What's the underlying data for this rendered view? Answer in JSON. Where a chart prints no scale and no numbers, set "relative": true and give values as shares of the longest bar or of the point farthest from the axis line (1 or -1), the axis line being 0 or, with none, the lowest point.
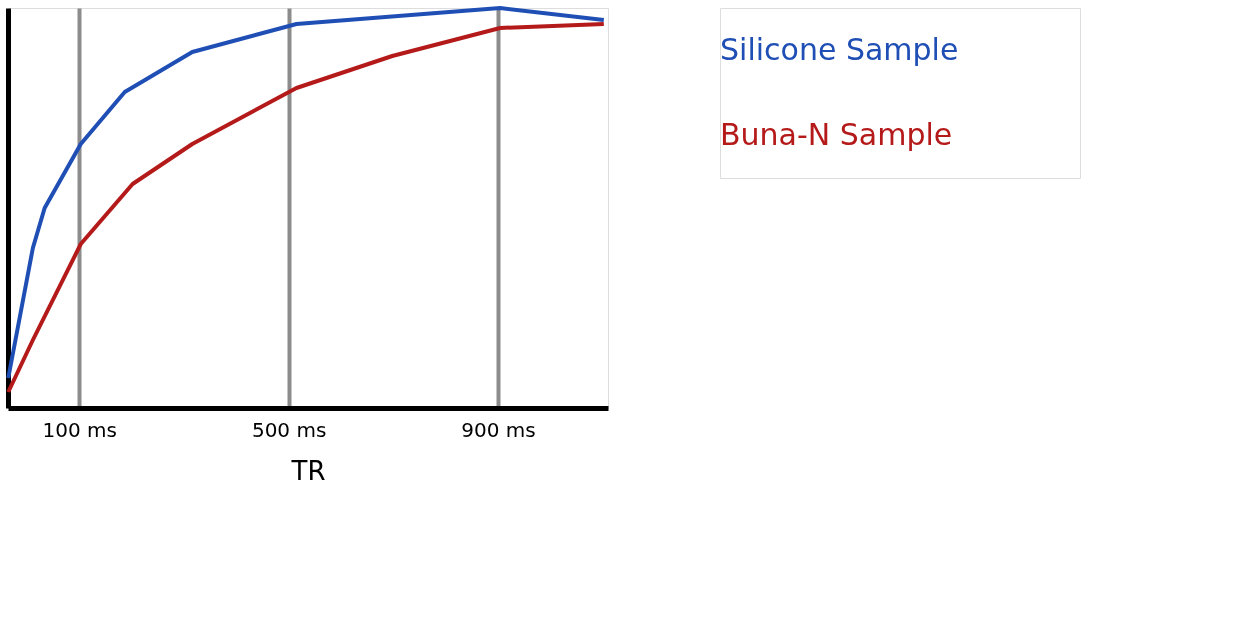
{
  "chart_data": {
    "type": "line",
    "xlabel": "TR",
    "relative": true,
    "xlim": [
      -36,
      1110
    ],
    "xticks": [
      {
        "value": 100,
        "label": "100 ms"
      },
      {
        "value": 500,
        "label": "500 ms"
      },
      {
        "value": 900,
        "label": "900 ms"
      }
    ],
    "grid": "x",
    "legend": "right",
    "marker": "none",
    "line_style": "solid",
    "series": [
      {
        "name": "Silicone Sample",
        "color": "#1f4fb5",
        "x": [
          -35.5,
          11.5,
          34,
          103,
          187,
          316,
          515,
          904,
          1102
        ],
        "values": [
          0.075,
          0.4,
          0.5,
          0.66,
          0.79,
          0.89,
          0.96,
          1.0,
          0.97
        ]
      },
      {
        "name": "Buna-N Sample",
        "color": "#b51a1a",
        "x": [
          -35.5,
          11.5,
          103,
          202,
          316,
          515,
          698,
          904,
          1102
        ],
        "values": [
          0.04,
          0.17,
          0.41,
          0.56,
          0.66,
          0.8,
          0.88,
          0.95,
          0.96
        ]
      }
    ]
  }
}
